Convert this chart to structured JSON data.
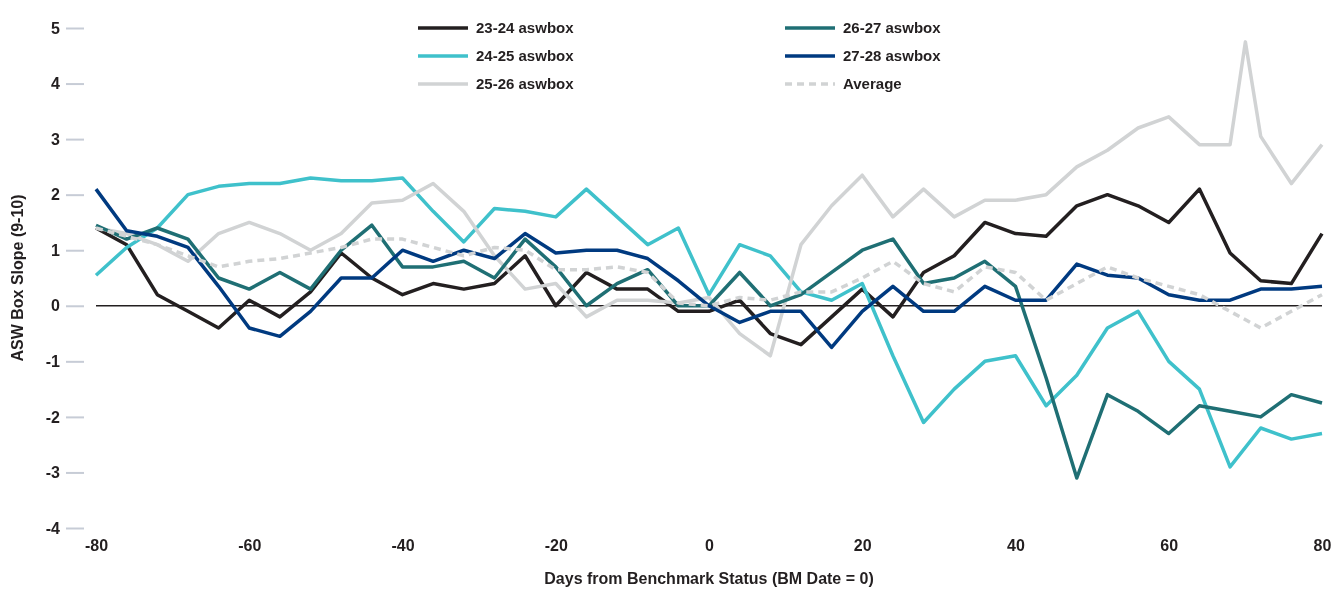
{
  "chart_data": {
    "type": "line",
    "xlabel": "Days from Benchmark Status (BM Date = 0)",
    "ylabel": "ASW Box Slope (9-10)",
    "x": [
      -80,
      -76,
      -72,
      -68,
      -64,
      -60,
      -56,
      -52,
      -48,
      -44,
      -40,
      -36,
      -32,
      -28,
      -24,
      -20,
      -16,
      -12,
      -8,
      -4,
      0,
      4,
      8,
      12,
      16,
      20,
      24,
      28,
      32,
      36,
      40,
      44,
      48,
      52,
      56,
      60,
      64,
      68,
      72,
      76,
      80
    ],
    "series": [
      {
        "name": "23-24 aswbox",
        "color": "#231f20",
        "values": [
          1.4,
          1.1,
          0.2,
          -0.1,
          -0.4,
          0.1,
          -0.2,
          0.25,
          0.95,
          0.5,
          0.2,
          0.4,
          0.3,
          0.4,
          0.9,
          0.0,
          0.6,
          0.3,
          0.3,
          -0.1,
          -0.1,
          0.1,
          -0.5,
          -0.7,
          -0.2,
          0.3,
          -0.2,
          0.6,
          0.9,
          1.5,
          1.3,
          1.25,
          1.8,
          2.0,
          1.8,
          1.5,
          2.1,
          0.95,
          0.45,
          0.4,
          1.3
        ]
      },
      {
        "name": "24-25 aswbox",
        "color": "#3fc1cb",
        "values": [
          0.55,
          1.05,
          1.4,
          2.0,
          2.15,
          2.2,
          2.2,
          2.3,
          2.25,
          2.25,
          2.3,
          1.7,
          1.15,
          1.75,
          1.7,
          1.6,
          2.1,
          1.6,
          1.1,
          1.4,
          0.2,
          1.1,
          0.9,
          0.25,
          0.1,
          0.4,
          -0.9,
          -2.1,
          -1.5,
          -1.0,
          -0.9,
          -1.8,
          -1.25,
          -0.4,
          -0.1,
          -1.0,
          -1.5,
          -2.9,
          -2.2,
          -2.4,
          -2.3
        ]
      },
      {
        "name": "25-26 aswbox",
        "color": "#d1d3d4",
        "x": [
          -80,
          -76,
          -72,
          -68,
          -64,
          -60,
          -56,
          -52,
          -48,
          -44,
          -40,
          -36,
          -32,
          -28,
          -24,
          -20,
          -16,
          -12,
          -8,
          -4,
          0,
          4,
          8,
          12,
          16,
          20,
          24,
          28,
          32,
          36,
          40,
          44,
          48,
          52,
          56,
          60,
          64,
          68,
          70,
          72,
          76,
          80
        ],
        "values": [
          1.4,
          1.3,
          1.1,
          0.8,
          1.3,
          1.5,
          1.3,
          1.0,
          1.3,
          1.85,
          1.9,
          2.2,
          1.7,
          0.9,
          0.3,
          0.4,
          -0.2,
          0.1,
          0.1,
          0.05,
          0.15,
          -0.5,
          -0.9,
          1.1,
          1.8,
          2.35,
          1.6,
          2.1,
          1.6,
          1.9,
          1.9,
          2.0,
          2.5,
          2.8,
          3.2,
          3.4,
          2.9,
          2.9,
          4.75,
          3.05,
          2.2,
          2.9
        ]
      },
      {
        "name": "26-27 aswbox",
        "color": "#1f6f74",
        "values": [
          1.45,
          1.2,
          1.4,
          1.2,
          0.5,
          0.3,
          0.6,
          0.3,
          1.0,
          1.45,
          0.7,
          0.7,
          0.8,
          0.5,
          1.2,
          0.7,
          0.0,
          0.4,
          0.65,
          0.0,
          0.0,
          0.6,
          0.0,
          0.2,
          0.6,
          1.0,
          1.2,
          0.4,
          0.5,
          0.8,
          0.35,
          -1.3,
          -3.1,
          -1.6,
          -1.9,
          -2.3,
          -1.8,
          -1.9,
          -2.0,
          -1.6,
          -1.75
        ]
      },
      {
        "name": "27-28 aswbox",
        "color": "#003a80",
        "values": [
          2.1,
          1.35,
          1.25,
          1.05,
          0.35,
          -0.4,
          -0.55,
          -0.1,
          0.5,
          0.5,
          1.0,
          0.8,
          1.0,
          0.85,
          1.3,
          0.95,
          1.0,
          1.0,
          0.85,
          0.45,
          0.0,
          -0.3,
          -0.1,
          -0.1,
          -0.75,
          -0.1,
          0.35,
          -0.1,
          -0.1,
          0.35,
          0.1,
          0.1,
          0.75,
          0.55,
          0.5,
          0.2,
          0.1,
          0.1,
          0.3,
          0.3,
          0.35
        ]
      },
      {
        "name": "Average",
        "color": "#d1d3d4",
        "line_style": "dashed",
        "values": [
          1.4,
          1.25,
          1.1,
          0.9,
          0.7,
          0.8,
          0.85,
          0.95,
          1.05,
          1.2,
          1.2,
          1.05,
          0.9,
          1.05,
          1.0,
          0.65,
          0.65,
          0.7,
          0.6,
          0.05,
          0.0,
          0.15,
          0.1,
          0.25,
          0.25,
          0.5,
          0.8,
          0.4,
          0.25,
          0.7,
          0.6,
          0.1,
          0.4,
          0.7,
          0.5,
          0.35,
          0.2,
          -0.1,
          -0.4,
          -0.1,
          0.2
        ]
      }
    ],
    "xlim": [
      -80,
      80
    ],
    "xticks": [
      -80,
      -60,
      -40,
      -20,
      0,
      20,
      40,
      60,
      80
    ],
    "ylim": [
      -4,
      5
    ],
    "yticks": [
      -4,
      -3,
      -2,
      -1,
      0,
      1,
      2,
      3,
      4,
      5
    ],
    "ref_lines": [
      {
        "axis": "y",
        "value": 0,
        "color": "#231f20"
      }
    ],
    "grid": false,
    "legend": "top",
    "line_style": "solid"
  }
}
